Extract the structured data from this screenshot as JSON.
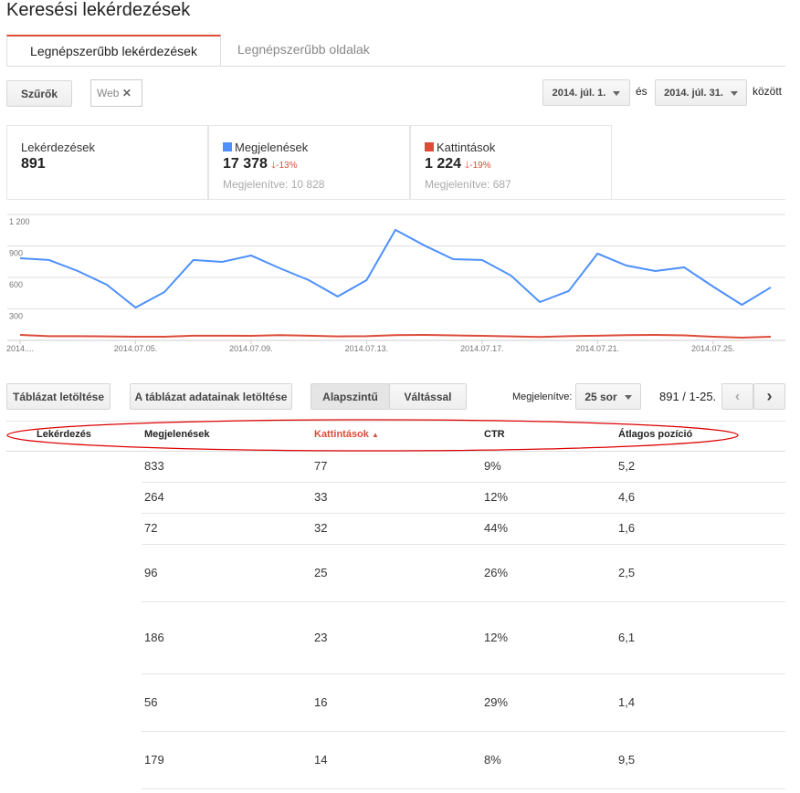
{
  "header": {
    "title": "Keresési lekérdezések"
  },
  "tabs": [
    "Legnépszerűbb lekérdezések",
    "Legnépszerűbb oldalak"
  ],
  "filters": {
    "button": "Szűrők",
    "chip": "Web",
    "date_from": "2014. júl. 1.",
    "and": "és",
    "date_to": "2014. júl. 31.",
    "between": "között"
  },
  "stats": [
    {
      "label": "Lekérdezések",
      "value": "891"
    },
    {
      "label": "Megjelenések",
      "value": "17 378",
      "change": "-13%",
      "shown": "Megjelenítve: 10 828",
      "color": "#4d90fe"
    },
    {
      "label": "Kattintások",
      "value": "1 224",
      "change": "-19%",
      "shown": "Megjelenítve: 687",
      "color": "#dd4b39"
    }
  ],
  "chart": {
    "type": "line",
    "categories": [
      "2014....",
      null,
      null,
      null,
      "2014.07.05.",
      null,
      null,
      null,
      "2014.07.09.",
      null,
      null,
      null,
      "2014.07.13.",
      null,
      null,
      null,
      "2014.07.17.",
      null,
      null,
      null,
      "2014.07.21.",
      null,
      null,
      null,
      "2014.07.25.",
      null,
      null
    ],
    "series": [
      {
        "color": "#4d90fe",
        "values": [
          783,
          766,
          661,
          531,
          313,
          461,
          766,
          748,
          809,
          687,
          574,
          418,
          574,
          1053,
          905,
          774,
          766,
          618,
          365,
          470,
          827,
          713,
          661,
          696,
          513,
          339,
          505
        ]
      },
      {
        "color": "#dd4b39",
        "values": [
          52,
          40,
          40,
          38,
          35,
          35,
          45,
          45,
          43,
          50,
          45,
          38,
          40,
          50,
          52,
          48,
          43,
          38,
          33,
          40,
          45,
          50,
          52,
          48,
          35,
          26,
          35
        ]
      }
    ],
    "ylim": [
      0,
      1200
    ],
    "yticks": [
      {
        "value": 1200,
        "label": "1 200"
      },
      900,
      600,
      300
    ],
    "grid": true
  },
  "toolbar": {
    "download": "Táblázat letöltése",
    "download_data": "A táblázat adatainak letöltése",
    "basic": "Alapszintű",
    "switch": "Váltással",
    "show": "Megjelenítve:",
    "rows": "25 sor",
    "range": "891 / 1-25."
  },
  "table": {
    "columns": [
      "Lekérdezés",
      "Megjelenések",
      "Kattintások",
      "CTR",
      "Átlagos pozíció"
    ],
    "rows": [
      [
        "833",
        "77",
        "9%",
        "5,2"
      ],
      [
        "264",
        "33",
        "12%",
        "4,6"
      ],
      [
        "72",
        "32",
        "44%",
        "1,6"
      ],
      [
        "96",
        "25",
        "26%",
        "2,5"
      ],
      [
        "186",
        "23",
        "12%",
        "6,1"
      ],
      [
        "56",
        "16",
        "29%",
        "1,4"
      ],
      [
        "179",
        "14",
        "8%",
        "9,5"
      ]
    ]
  }
}
